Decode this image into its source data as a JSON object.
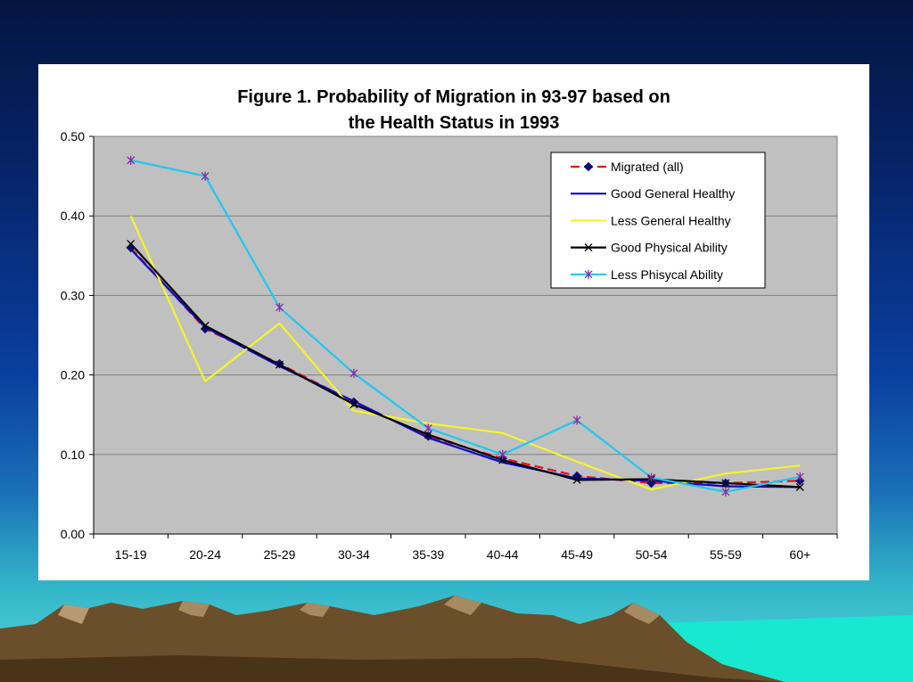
{
  "chart_data": {
    "type": "line",
    "title_lines": [
      "Figure 1. Probability of Migration in 93-97 based on",
      "the Health Status in 1993"
    ],
    "xlabel": "",
    "ylabel": "",
    "categories": [
      "15-19",
      "20-24",
      "25-29",
      "30-34",
      "35-39",
      "40-44",
      "45-49",
      "50-54",
      "55-59",
      "60+"
    ],
    "ylim": [
      0,
      0.5
    ],
    "yticks": [
      "0.00",
      "0.10",
      "0.20",
      "0.30",
      "0.40",
      "0.50"
    ],
    "grid": true,
    "legend_position": "top-right",
    "series": [
      {
        "name": "Migrated (all)",
        "color": "#e8101a",
        "dash": true,
        "marker": "diamond",
        "marker_color": "#0a0a78",
        "values": [
          0.36,
          0.258,
          0.214,
          0.166,
          0.123,
          0.095,
          0.073,
          0.064,
          0.064,
          0.067
        ]
      },
      {
        "name": "Good General Healthy",
        "color": "#0a0ad0",
        "dash": false,
        "marker": "none",
        "values": [
          0.358,
          0.26,
          0.211,
          0.167,
          0.121,
          0.09,
          0.07,
          0.067,
          0.06,
          0.059
        ]
      },
      {
        "name": "Less General Healthy",
        "color": "#f5f52a",
        "dash": false,
        "marker": "none",
        "values": [
          0.4,
          0.192,
          0.265,
          0.155,
          0.139,
          0.127,
          0.091,
          0.056,
          0.076,
          0.086
        ]
      },
      {
        "name": "Good Physical Ability",
        "color": "#000000",
        "dash": false,
        "marker": "x",
        "values": [
          0.365,
          0.262,
          0.213,
          0.163,
          0.125,
          0.093,
          0.068,
          0.069,
          0.064,
          0.059
        ]
      },
      {
        "name": "Less Phisycal Ability",
        "color": "#1ec8f0",
        "dash": false,
        "marker": "star",
        "marker_color": "#8a2aa0",
        "values": [
          0.47,
          0.45,
          0.285,
          0.202,
          0.133,
          0.1,
          0.143,
          0.071,
          0.053,
          0.072
        ]
      }
    ]
  }
}
